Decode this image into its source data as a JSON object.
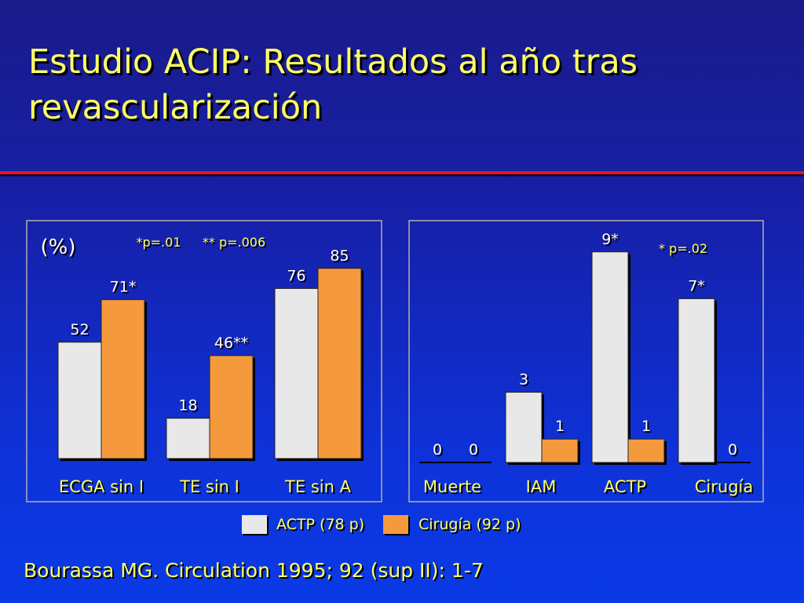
{
  "slide": {
    "title": "Estudio ACIP: Resultados al año tras revascularización",
    "source": "Bourassa MG. Circulation 1995; 92 (sup II): 1-7"
  },
  "colors": {
    "actp": "#e8e8e8",
    "cirugia": "#f59a3c",
    "label_text": "#ffff66",
    "panel_border": "#b0b0b0",
    "title_rule": "#e8102a"
  },
  "legend": [
    {
      "label": "ACTP (78 p)",
      "color": "#e8e8e8"
    },
    {
      "label": "Cirugía (92 p)",
      "color": "#f59a3c"
    }
  ],
  "chart_data": [
    {
      "type": "bar",
      "unit_label": "(%)",
      "annotations": [
        "*p=.01",
        "** p=.006"
      ],
      "categories": [
        "ECGA sin I",
        "TE sin I",
        "TE sin A"
      ],
      "series": [
        {
          "name": "ACTP (78 p)",
          "values": [
            52,
            18,
            76
          ],
          "labels": [
            "52",
            "18",
            "76"
          ]
        },
        {
          "name": "Cirugía (92 p)",
          "values": [
            71,
            46,
            85
          ],
          "labels": [
            "71*",
            "46**",
            "85"
          ]
        }
      ],
      "ylim": [
        0,
        100
      ],
      "grid": false
    },
    {
      "type": "bar",
      "annotations": [
        "* p=.02"
      ],
      "categories": [
        "Muerte",
        "IAM",
        "ACTP",
        "Cirugía"
      ],
      "series": [
        {
          "name": "ACTP (78 p)",
          "values": [
            0,
            3,
            9,
            7
          ],
          "labels": [
            "0",
            "3",
            "9*",
            "7*"
          ]
        },
        {
          "name": "Cirugía (92 p)",
          "values": [
            0,
            1,
            1,
            0
          ],
          "labels": [
            "0",
            "1",
            "1",
            "0"
          ]
        }
      ],
      "ylim": [
        0,
        10
      ],
      "grid": false
    }
  ]
}
